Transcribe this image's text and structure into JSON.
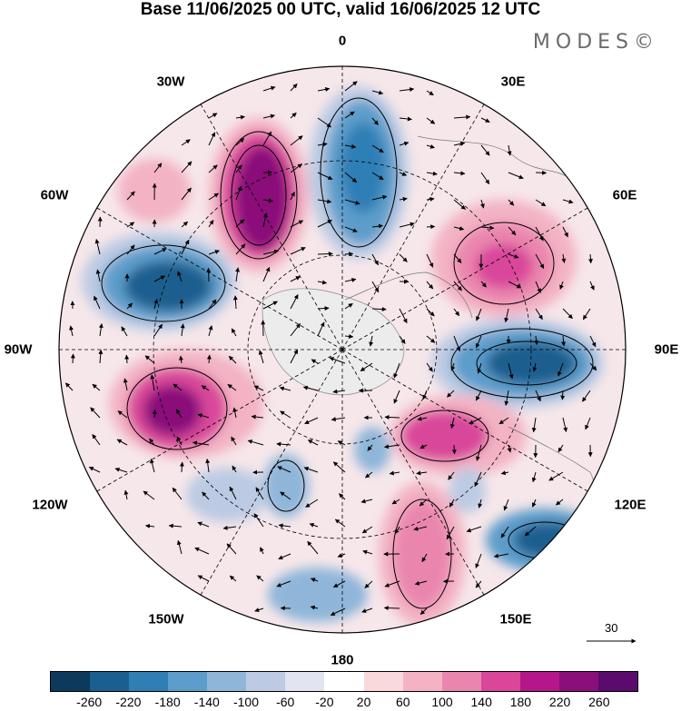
{
  "title": "Base 11/06/2025 00 UTC, valid 16/06/2025 12 UTC",
  "logo": "MODES©",
  "longitude_labels": {
    "lon_0": "0",
    "lon_30e": "30E",
    "lon_60e": "60E",
    "lon_90e": "90E",
    "lon_120e": "120E",
    "lon_150e": "150E",
    "lon_180": "180",
    "lon_150w": "150W",
    "lon_120w": "120W",
    "lon_90w": "90W",
    "lon_60w": "60W",
    "lon_30w": "30W"
  },
  "reference_vector": "30",
  "colorbar": {
    "colors": [
      "#0d3a5c",
      "#1a5f8f",
      "#2f7fb5",
      "#5d9dcb",
      "#8fb6d9",
      "#bccbe3",
      "#e2e4f1",
      "#ffffff",
      "#f9d9dc",
      "#f3b3c4",
      "#ea86ae",
      "#d9469a",
      "#b5178a",
      "#8a0f7a",
      "#5b0b6e"
    ],
    "tick_labels": [
      "-260",
      "-220",
      "-180",
      "-140",
      "-100",
      "-60",
      "-20",
      "20",
      "60",
      "100",
      "140",
      "180",
      "220",
      "260"
    ]
  }
}
